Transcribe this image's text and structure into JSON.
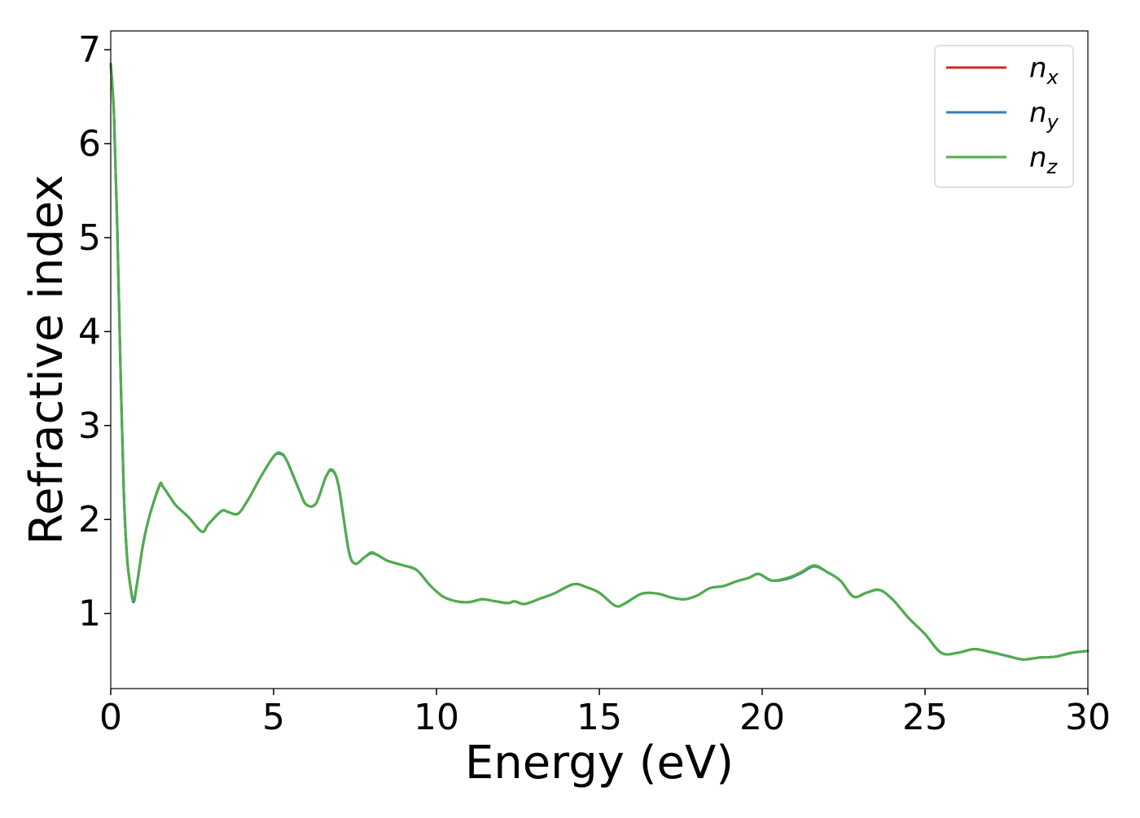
{
  "chart_data": {
    "type": "line",
    "title": "",
    "xlabel": "Energy (eV)",
    "ylabel": "Refractive index",
    "xlim": [
      0,
      30
    ],
    "ylim": [
      0.2,
      7.2
    ],
    "xticks": [
      0,
      5,
      10,
      15,
      20,
      25,
      30
    ],
    "yticks": [
      1,
      2,
      3,
      4,
      5,
      6,
      7
    ],
    "grid": false,
    "legend_position": "top-right",
    "x": [
      0,
      0.1,
      0.2,
      0.3,
      0.4,
      0.5,
      0.6,
      0.7,
      0.8,
      1.0,
      1.2,
      1.5,
      1.6,
      1.8,
      2.0,
      2.4,
      2.8,
      3.0,
      3.4,
      3.6,
      3.9,
      4.2,
      4.6,
      5.0,
      5.2,
      5.4,
      5.8,
      6.0,
      6.3,
      6.6,
      6.8,
      7.0,
      7.3,
      7.5,
      7.8,
      8.0,
      8.2,
      8.5,
      9.0,
      9.4,
      9.8,
      10.2,
      10.6,
      11.0,
      11.4,
      11.8,
      12.2,
      12.4,
      12.7,
      13.2,
      13.6,
      14.2,
      14.6,
      15.0,
      15.5,
      15.8,
      16.3,
      16.8,
      17.2,
      17.6,
      18.0,
      18.4,
      18.8,
      19.2,
      19.6,
      19.9,
      20.3,
      20.8,
      21.2,
      21.6,
      22.0,
      22.4,
      22.8,
      23.2,
      23.6,
      24.0,
      24.5,
      25.0,
      25.5,
      26.0,
      26.5,
      27.0,
      27.5,
      28.0,
      28.5,
      29.0,
      29.5,
      30.0
    ],
    "series": [
      {
        "name": "n_x",
        "color": "#d62728",
        "values": [
          6.85,
          6.3,
          5.1,
          3.6,
          2.3,
          1.6,
          1.3,
          1.13,
          1.3,
          1.75,
          2.05,
          2.36,
          2.35,
          2.25,
          2.15,
          2.02,
          1.87,
          1.95,
          2.09,
          2.08,
          2.06,
          2.2,
          2.45,
          2.67,
          2.7,
          2.63,
          2.3,
          2.16,
          2.17,
          2.45,
          2.52,
          2.35,
          1.68,
          1.53,
          1.6,
          1.64,
          1.62,
          1.56,
          1.51,
          1.46,
          1.3,
          1.18,
          1.13,
          1.12,
          1.15,
          1.13,
          1.11,
          1.13,
          1.1,
          1.16,
          1.21,
          1.31,
          1.28,
          1.22,
          1.08,
          1.11,
          1.21,
          1.21,
          1.17,
          1.15,
          1.19,
          1.27,
          1.29,
          1.34,
          1.38,
          1.42,
          1.35,
          1.38,
          1.44,
          1.51,
          1.44,
          1.35,
          1.18,
          1.22,
          1.25,
          1.15,
          0.95,
          0.78,
          0.58,
          0.58,
          0.62,
          0.59,
          0.55,
          0.51,
          0.53,
          0.54,
          0.58,
          0.6
        ]
      },
      {
        "name": "n_y",
        "color": "#377eb8",
        "values": [
          6.85,
          6.3,
          5.1,
          3.6,
          2.3,
          1.6,
          1.3,
          1.12,
          1.3,
          1.75,
          2.05,
          2.36,
          2.35,
          2.25,
          2.15,
          2.02,
          1.87,
          1.95,
          2.09,
          2.08,
          2.06,
          2.2,
          2.45,
          2.67,
          2.7,
          2.63,
          2.3,
          2.16,
          2.17,
          2.45,
          2.52,
          2.35,
          1.68,
          1.53,
          1.6,
          1.64,
          1.62,
          1.56,
          1.51,
          1.46,
          1.3,
          1.18,
          1.13,
          1.12,
          1.15,
          1.13,
          1.11,
          1.13,
          1.1,
          1.16,
          1.21,
          1.31,
          1.28,
          1.22,
          1.08,
          1.11,
          1.21,
          1.21,
          1.17,
          1.15,
          1.19,
          1.27,
          1.29,
          1.34,
          1.38,
          1.42,
          1.35,
          1.37,
          1.43,
          1.5,
          1.44,
          1.35,
          1.18,
          1.22,
          1.25,
          1.15,
          0.95,
          0.78,
          0.58,
          0.58,
          0.62,
          0.59,
          0.55,
          0.51,
          0.53,
          0.54,
          0.58,
          0.6
        ]
      },
      {
        "name": "n_z",
        "color": "#4daf4a",
        "values": [
          6.85,
          6.3,
          5.1,
          3.6,
          2.3,
          1.6,
          1.3,
          1.14,
          1.3,
          1.75,
          2.05,
          2.37,
          2.35,
          2.25,
          2.15,
          2.02,
          1.87,
          1.95,
          2.09,
          2.08,
          2.06,
          2.2,
          2.45,
          2.67,
          2.71,
          2.63,
          2.3,
          2.16,
          2.17,
          2.45,
          2.53,
          2.35,
          1.68,
          1.53,
          1.6,
          1.65,
          1.62,
          1.56,
          1.51,
          1.46,
          1.3,
          1.18,
          1.13,
          1.12,
          1.15,
          1.13,
          1.11,
          1.13,
          1.1,
          1.16,
          1.21,
          1.31,
          1.28,
          1.22,
          1.08,
          1.11,
          1.21,
          1.21,
          1.17,
          1.15,
          1.19,
          1.27,
          1.29,
          1.34,
          1.38,
          1.42,
          1.35,
          1.38,
          1.44,
          1.51,
          1.44,
          1.35,
          1.18,
          1.22,
          1.25,
          1.15,
          0.95,
          0.78,
          0.58,
          0.58,
          0.62,
          0.59,
          0.55,
          0.51,
          0.53,
          0.54,
          0.58,
          0.6
        ]
      }
    ],
    "legend": [
      {
        "base": "n",
        "sub": "x",
        "color": "#d62728"
      },
      {
        "base": "n",
        "sub": "y",
        "color": "#377eb8"
      },
      {
        "base": "n",
        "sub": "z",
        "color": "#4daf4a"
      }
    ]
  }
}
